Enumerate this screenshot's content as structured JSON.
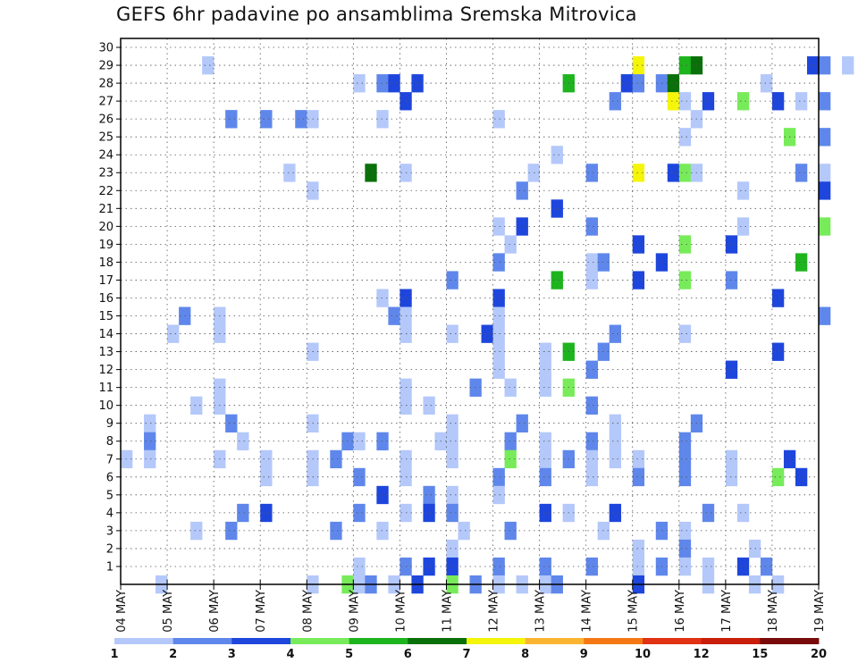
{
  "chart_data": {
    "type": "heatmap",
    "title": "GEFS 6hr padavine po ansamblima Sremska Mitrovica",
    "xlabel": "",
    "ylabel": "",
    "members": [
      1,
      2,
      3,
      4,
      5,
      6,
      7,
      8,
      9,
      10,
      11,
      12,
      13,
      14,
      15,
      16,
      17,
      18,
      19,
      20,
      21,
      22,
      23,
      24,
      25,
      26,
      27,
      28,
      29,
      30
    ],
    "x_tick_labels": [
      "04 MAY",
      "05 MAY",
      "06 MAY",
      "07 MAY",
      "08 MAY",
      "09 MAY",
      "10 MAY",
      "11 MAY",
      "12 MAY",
      "13 MAY",
      "14 MAY",
      "15 MAY",
      "16 MAY",
      "17 MAY",
      "18 MAY",
      "19 MAY"
    ],
    "steps_per_day": 4,
    "grid": true,
    "colorbar": {
      "position": "bottom",
      "tick_labels": [
        "1",
        "2",
        "3",
        "4",
        "5",
        "6",
        "7",
        "8",
        "9",
        "10",
        "12",
        "15",
        "20"
      ],
      "colors": [
        "#b4c8fa",
        "#5f87eb",
        "#1e46dc",
        "#78eb5a",
        "#1eb41e",
        "#0a700a",
        "#f5f50a",
        "#fab432",
        "#f57814",
        "#e13214",
        "#c81e0a",
        "#780a0a"
      ]
    },
    "cells": [
      [
        30,
        0,
        1,
        3,
        1
      ],
      [
        30,
        0,
        10,
        4,
        7
      ],
      [
        30,
        0,
        11,
        4,
        5
      ],
      [
        30,
        0,
        11,
        5,
        6
      ],
      [
        30,
        0,
        14,
        3,
        3
      ],
      [
        30,
        0,
        14,
        4,
        2
      ],
      [
        30,
        0,
        15,
        2,
        1
      ],
      [
        30,
        0,
        16,
        0,
        6
      ],
      [
        30,
        0,
        16,
        2,
        4
      ],
      [
        29,
        0,
        5,
        0,
        1
      ],
      [
        29,
        0,
        5,
        2,
        2
      ],
      [
        29,
        0,
        5,
        3,
        3
      ],
      [
        29,
        0,
        6,
        1,
        3
      ],
      [
        29,
        0,
        9,
        2,
        5
      ],
      [
        29,
        0,
        10,
        3,
        3
      ],
      [
        29,
        0,
        11,
        0,
        2
      ],
      [
        29,
        0,
        11,
        2,
        2
      ],
      [
        29,
        0,
        11,
        3,
        6
      ],
      [
        29,
        0,
        13,
        3,
        1
      ],
      [
        28,
        0,
        6,
        0,
        3
      ],
      [
        28,
        0,
        10,
        2,
        2
      ],
      [
        28,
        0,
        11,
        3,
        7
      ],
      [
        28,
        0,
        12,
        0,
        1
      ],
      [
        28,
        0,
        12,
        2,
        3
      ],
      [
        28,
        0,
        13,
        1,
        4
      ],
      [
        28,
        0,
        14,
        0,
        3
      ],
      [
        28,
        0,
        14,
        2,
        1
      ],
      [
        28,
        0,
        15,
        0,
        2
      ],
      [
        27,
        0,
        2,
        1,
        2
      ],
      [
        27,
        0,
        3,
        0,
        2
      ],
      [
        27,
        0,
        3,
        3,
        2
      ],
      [
        27,
        0,
        4,
        0,
        1
      ],
      [
        27,
        0,
        5,
        2,
        1
      ],
      [
        27,
        0,
        8,
        0,
        1
      ],
      [
        27,
        0,
        12,
        1,
        1
      ],
      [
        26,
        0,
        12,
        0,
        1
      ],
      [
        26,
        0,
        14,
        1,
        4
      ],
      [
        26,
        0,
        15,
        0,
        2
      ],
      [
        26,
        0,
        16,
        0,
        3
      ],
      [
        25,
        0,
        9,
        1,
        1
      ],
      [
        24,
        0,
        3,
        2,
        1
      ],
      [
        24,
        0,
        5,
        1,
        6
      ],
      [
        24,
        0,
        6,
        0,
        1
      ],
      [
        24,
        0,
        8,
        3,
        1
      ],
      [
        24,
        0,
        10,
        0,
        2
      ],
      [
        24,
        0,
        11,
        0,
        7
      ],
      [
        24,
        0,
        11,
        3,
        3
      ],
      [
        24,
        0,
        12,
        0,
        4
      ],
      [
        24,
        0,
        12,
        1,
        1
      ],
      [
        24,
        0,
        14,
        2,
        2
      ],
      [
        24,
        0,
        15,
        0,
        1
      ],
      [
        24,
        0,
        16,
        2,
        3
      ],
      [
        23,
        0,
        4,
        0,
        1
      ],
      [
        23,
        0,
        8,
        2,
        2
      ],
      [
        23,
        0,
        13,
        1,
        1
      ],
      [
        23,
        0,
        15,
        0,
        3
      ],
      [
        22,
        0,
        9,
        1,
        3
      ],
      [
        21,
        0,
        8,
        0,
        1
      ],
      [
        21,
        0,
        8,
        2,
        3
      ],
      [
        21,
        0,
        10,
        0,
        2
      ],
      [
        21,
        0,
        13,
        1,
        1
      ],
      [
        21,
        0,
        15,
        0,
        4
      ],
      [
        21,
        0,
        16,
        0,
        2
      ],
      [
        20,
        0,
        8,
        1,
        1
      ],
      [
        20,
        0,
        11,
        0,
        3
      ],
      [
        20,
        0,
        12,
        0,
        4
      ],
      [
        20,
        0,
        13,
        0,
        3
      ],
      [
        19,
        0,
        8,
        0,
        2
      ],
      [
        19,
        0,
        10,
        0,
        1
      ],
      [
        19,
        0,
        10,
        1,
        2
      ],
      [
        19,
        0,
        11,
        2,
        3
      ],
      [
        19,
        0,
        14,
        2,
        5
      ],
      [
        19,
        0,
        16,
        0,
        3
      ],
      [
        18,
        0,
        7,
        0,
        2
      ],
      [
        18,
        0,
        9,
        1,
        5
      ],
      [
        18,
        0,
        10,
        0,
        1
      ],
      [
        18,
        0,
        11,
        0,
        3
      ],
      [
        18,
        0,
        12,
        0,
        4
      ],
      [
        18,
        0,
        13,
        0,
        2
      ],
      [
        17,
        0,
        5,
        2,
        1
      ],
      [
        17,
        0,
        6,
        0,
        3
      ],
      [
        17,
        0,
        8,
        0,
        3
      ],
      [
        17,
        0,
        14,
        0,
        3
      ],
      [
        16,
        0,
        1,
        1,
        2
      ],
      [
        16,
        0,
        2,
        0,
        1
      ],
      [
        16,
        0,
        5,
        3,
        2
      ],
      [
        16,
        0,
        6,
        0,
        1
      ],
      [
        16,
        0,
        8,
        0,
        1
      ],
      [
        16,
        0,
        15,
        0,
        2
      ],
      [
        15,
        0,
        1,
        0,
        1
      ],
      [
        15,
        0,
        2,
        0,
        1
      ],
      [
        15,
        0,
        6,
        0,
        1
      ],
      [
        15,
        0,
        7,
        0,
        1
      ],
      [
        15,
        0,
        7,
        3,
        3
      ],
      [
        15,
        0,
        8,
        0,
        1
      ],
      [
        15,
        0,
        10,
        2,
        2
      ],
      [
        15,
        0,
        12,
        0,
        1
      ],
      [
        14,
        0,
        4,
        0,
        1
      ],
      [
        14,
        0,
        8,
        0,
        1
      ],
      [
        14,
        0,
        9,
        0,
        1
      ],
      [
        14,
        0,
        9,
        2,
        5
      ],
      [
        14,
        0,
        10,
        1,
        2
      ],
      [
        14,
        0,
        14,
        0,
        3
      ],
      [
        13,
        0,
        8,
        0,
        1
      ],
      [
        13,
        0,
        9,
        0,
        1
      ],
      [
        13,
        0,
        10,
        0,
        2
      ],
      [
        13,
        0,
        13,
        0,
        3
      ],
      [
        12,
        0,
        2,
        0,
        1
      ],
      [
        12,
        0,
        6,
        0,
        1
      ],
      [
        12,
        0,
        7,
        2,
        2
      ],
      [
        12,
        0,
        8,
        1,
        1
      ],
      [
        12,
        0,
        9,
        0,
        1
      ],
      [
        12,
        0,
        9,
        2,
        4
      ],
      [
        11,
        0,
        1,
        2,
        1
      ],
      [
        11,
        0,
        2,
        0,
        1
      ],
      [
        11,
        0,
        6,
        0,
        1
      ],
      [
        11,
        0,
        6,
        2,
        1
      ],
      [
        11,
        0,
        10,
        0,
        2
      ],
      [
        10,
        0,
        0,
        2,
        1
      ],
      [
        10,
        0,
        2,
        1,
        2
      ],
      [
        10,
        0,
        4,
        0,
        1
      ],
      [
        10,
        0,
        7,
        0,
        1
      ],
      [
        10,
        0,
        8,
        2,
        2
      ],
      [
        10,
        0,
        10,
        2,
        1
      ],
      [
        10,
        0,
        12,
        1,
        2
      ],
      [
        9,
        0,
        0,
        2,
        2
      ],
      [
        9,
        0,
        2,
        2,
        1
      ],
      [
        9,
        0,
        4,
        3,
        2
      ],
      [
        9,
        0,
        5,
        0,
        1
      ],
      [
        9,
        0,
        5,
        2,
        2
      ],
      [
        9,
        0,
        6,
        3,
        1
      ],
      [
        9,
        0,
        7,
        0,
        1
      ],
      [
        9,
        0,
        8,
        1,
        2
      ],
      [
        9,
        0,
        9,
        0,
        1
      ],
      [
        9,
        0,
        10,
        0,
        2
      ],
      [
        9,
        0,
        10,
        2,
        1
      ],
      [
        9,
        0,
        12,
        0,
        2
      ],
      [
        8,
        0,
        0,
        0,
        1
      ],
      [
        8,
        0,
        0,
        2,
        1
      ],
      [
        8,
        0,
        2,
        0,
        1
      ],
      [
        8,
        0,
        3,
        0,
        1
      ],
      [
        8,
        0,
        4,
        0,
        1
      ],
      [
        8,
        0,
        4,
        2,
        2
      ],
      [
        8,
        0,
        6,
        0,
        1
      ],
      [
        8,
        0,
        7,
        0,
        1
      ],
      [
        8,
        0,
        8,
        1,
        4
      ],
      [
        8,
        0,
        9,
        0,
        1
      ],
      [
        8,
        0,
        9,
        2,
        2
      ],
      [
        8,
        0,
        10,
        0,
        1
      ],
      [
        8,
        0,
        10,
        2,
        1
      ],
      [
        8,
        0,
        11,
        0,
        1
      ],
      [
        8,
        0,
        12,
        0,
        2
      ],
      [
        8,
        0,
        13,
        0,
        1
      ],
      [
        8,
        0,
        14,
        1,
        3
      ],
      [
        7,
        0,
        3,
        0,
        1
      ],
      [
        7,
        0,
        4,
        0,
        1
      ],
      [
        7,
        0,
        5,
        0,
        2
      ],
      [
        7,
        0,
        6,
        0,
        1
      ],
      [
        7,
        0,
        8,
        0,
        2
      ],
      [
        7,
        0,
        9,
        0,
        2
      ],
      [
        7,
        0,
        10,
        0,
        1
      ],
      [
        7,
        0,
        11,
        0,
        2
      ],
      [
        7,
        0,
        12,
        0,
        2
      ],
      [
        7,
        0,
        13,
        0,
        1
      ],
      [
        7,
        0,
        14,
        0,
        4
      ],
      [
        7,
        0,
        14,
        2,
        3
      ],
      [
        6,
        0,
        5,
        2,
        3
      ],
      [
        6,
        0,
        6,
        2,
        2
      ],
      [
        6,
        0,
        7,
        0,
        1
      ],
      [
        6,
        0,
        8,
        0,
        1
      ],
      [
        5,
        0,
        2,
        2,
        2
      ],
      [
        5,
        0,
        3,
        0,
        3
      ],
      [
        5,
        0,
        5,
        0,
        2
      ],
      [
        5,
        0,
        6,
        0,
        1
      ],
      [
        5,
        0,
        6,
        2,
        3
      ],
      [
        5,
        0,
        7,
        0,
        2
      ],
      [
        5,
        0,
        9,
        0,
        3
      ],
      [
        5,
        0,
        9,
        2,
        1
      ],
      [
        5,
        0,
        10,
        2,
        3
      ],
      [
        5,
        0,
        12,
        2,
        2
      ],
      [
        5,
        0,
        13,
        1,
        1
      ],
      [
        4,
        0,
        1,
        2,
        1
      ],
      [
        4,
        0,
        2,
        1,
        2
      ],
      [
        4,
        0,
        4,
        2,
        2
      ],
      [
        4,
        0,
        5,
        2,
        1
      ],
      [
        4,
        0,
        7,
        1,
        1
      ],
      [
        4,
        0,
        8,
        1,
        2
      ],
      [
        4,
        0,
        10,
        1,
        1
      ],
      [
        4,
        0,
        11,
        2,
        2
      ],
      [
        4,
        0,
        12,
        0,
        1
      ],
      [
        3,
        0,
        7,
        0,
        1
      ],
      [
        3,
        0,
        11,
        0,
        1
      ],
      [
        3,
        0,
        12,
        0,
        2
      ],
      [
        3,
        0,
        13,
        2,
        1
      ],
      [
        2,
        0,
        5,
        0,
        1
      ],
      [
        2,
        0,
        6,
        0,
        2
      ],
      [
        2,
        0,
        6,
        2,
        3
      ],
      [
        2,
        0,
        7,
        0,
        3
      ],
      [
        2,
        0,
        8,
        0,
        2
      ],
      [
        2,
        0,
        9,
        0,
        2
      ],
      [
        2,
        0,
        10,
        0,
        2
      ],
      [
        2,
        0,
        11,
        0,
        1
      ],
      [
        2,
        0,
        11,
        2,
        2
      ],
      [
        2,
        0,
        12,
        0,
        1
      ],
      [
        2,
        0,
        12,
        2,
        1
      ],
      [
        2,
        0,
        13,
        1,
        3
      ],
      [
        2,
        0,
        13,
        3,
        2
      ],
      [
        1,
        0,
        0,
        3,
        1
      ],
      [
        1,
        0,
        4,
        0,
        1
      ],
      [
        1,
        0,
        4,
        3,
        4
      ],
      [
        1,
        0,
        5,
        0,
        1
      ],
      [
        1,
        0,
        5,
        1,
        2
      ],
      [
        1,
        0,
        5,
        3,
        1
      ],
      [
        1,
        0,
        6,
        1,
        3
      ],
      [
        1,
        0,
        7,
        0,
        4
      ],
      [
        1,
        0,
        7,
        2,
        2
      ],
      [
        1,
        0,
        8,
        0,
        1
      ],
      [
        1,
        0,
        8,
        2,
        1
      ],
      [
        1,
        0,
        9,
        0,
        1
      ],
      [
        1,
        0,
        9,
        1,
        2
      ],
      [
        1,
        0,
        11,
        0,
        3
      ],
      [
        1,
        0,
        12,
        2,
        1
      ],
      [
        1,
        0,
        13,
        2,
        1
      ],
      [
        1,
        0,
        14,
        0,
        1
      ]
    ]
  }
}
